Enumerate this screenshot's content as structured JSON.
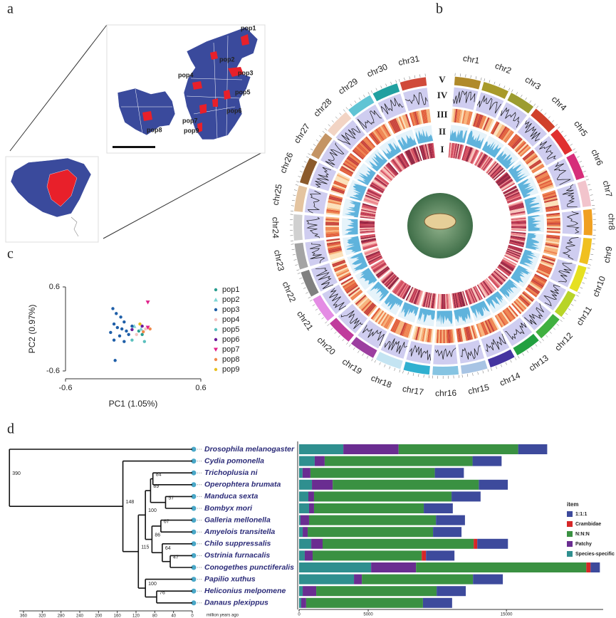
{
  "panel_labels": [
    "a",
    "b",
    "c",
    "d"
  ],
  "map": {
    "populations": [
      "pop1",
      "pop2",
      "pop3",
      "pop4",
      "pop5",
      "pop6",
      "pop7",
      "pop8",
      "pop9"
    ]
  },
  "circos": {
    "chromosomes": [
      "chr1",
      "chr2",
      "chr3",
      "chr4",
      "chr5",
      "chr6",
      "chr7",
      "chr8",
      "chr9",
      "chr10",
      "chr11",
      "chr12",
      "chr13",
      "chr14",
      "chr15",
      "chr16",
      "chr17",
      "chr18",
      "chr19",
      "chr20",
      "chr21",
      "chr22",
      "chr23",
      "chr24",
      "chr25",
      "chr26",
      "chr27",
      "chr28",
      "chr29",
      "chr30",
      "chr31"
    ],
    "colors": [
      "#b08a2a",
      "#a89a2a",
      "#9c9c30",
      "#d0402a",
      "#e03030",
      "#d62e7a",
      "#f2c4cc",
      "#f0a020",
      "#f0c020",
      "#e6e020",
      "#b8d428",
      "#40b040",
      "#22a040",
      "#4434a0",
      "#a8c4e4",
      "#86c4e2",
      "#30b0d0",
      "#c4e4f2",
      "#9c3ea0",
      "#c03c9c",
      "#e48ce4",
      "#808080",
      "#a4a4a4",
      "#d0d0d0",
      "#e4c4a0",
      "#8b5a2b",
      "#c49464",
      "#f2d4c4",
      "#60c4d4",
      "#20a0a0",
      "#d04a3a"
    ],
    "tracks": [
      "V",
      "IV",
      "III",
      "II",
      "I"
    ]
  },
  "chart_data": [
    {
      "type": "scatter",
      "xlabel": "PC1 (1.05%)",
      "ylabel": "PC2 (0.97%)",
      "xlim": [
        -0.6,
        0.6
      ],
      "ylim": [
        -0.6,
        0.6
      ],
      "xticks": [
        -0.6,
        0.6
      ],
      "yticks": [
        0.6,
        -0.6
      ],
      "series": [
        {
          "name": "pop1",
          "color": "#2a9d8f",
          "marker": "circle",
          "x": [
            0.05,
            0.08
          ],
          "values": [
            -0.03,
            -0.08
          ]
        },
        {
          "name": "pop2",
          "color": "#7fd6d6",
          "marker": "triangle",
          "x": [
            0.01,
            0.07
          ],
          "values": [
            0.04,
            0.0
          ]
        },
        {
          "name": "pop3",
          "color": "#1f5fa8",
          "marker": "circle",
          "x": [
            -0.18,
            -0.15,
            -0.11,
            -0.08,
            -0.17,
            -0.14,
            -0.1,
            -0.06,
            -0.2,
            -0.04,
            -0.12,
            -0.01,
            -0.17,
            -0.08,
            -0.16
          ],
          "values": [
            0.29,
            0.22,
            0.17,
            0.1,
            0.07,
            0.02,
            0.0,
            -0.03,
            -0.05,
            -0.08,
            -0.1,
            0.04,
            -0.16,
            -0.18,
            -0.45
          ]
        },
        {
          "name": "pop4",
          "color": "#f4c2c2",
          "marker": "circle",
          "x": [
            0.11,
            0.03
          ],
          "values": [
            0.0,
            -0.08
          ]
        },
        {
          "name": "pop5",
          "color": "#5bc0be",
          "marker": "circle",
          "x": [
            0.1,
            -0.01
          ],
          "values": [
            -0.18,
            -0.16
          ]
        },
        {
          "name": "pop6",
          "color": "#6a1b9a",
          "marker": "circle",
          "x": [
            -0.01,
            0.08
          ],
          "values": [
            -0.01,
            0.04
          ]
        },
        {
          "name": "pop7",
          "color": "#e0218a",
          "marker": "triangle-down",
          "x": [
            0.13,
            0.13
          ],
          "values": [
            0.38,
            0.02
          ]
        },
        {
          "name": "pop8",
          "color": "#f08a4b",
          "marker": "circle",
          "x": [
            0.15,
            0.09
          ],
          "values": [
            0.0,
            -0.04
          ]
        },
        {
          "name": "pop9",
          "color": "#e8c020",
          "marker": "circle",
          "x": [
            0.06
          ],
          "values": [
            0.07
          ]
        }
      ]
    },
    {
      "type": "bar",
      "orientation": "horizontal",
      "stacked": true,
      "legend_title": "item",
      "categories": [
        "Drosophila melanogaster",
        "Cydia pomonella",
        "Trichoplusia ni",
        "Operophtera brumata",
        "Manduca sexta",
        "Bombyx mori",
        "Galleria mellonella",
        "Amyelois transitella",
        "Chilo suppressalis",
        "Ostrinia furnacalis",
        "Conogethes punctiferalis",
        "Papilio xuthus",
        "Heliconius melpomene",
        "Danaus plexippus"
      ],
      "xlim": [
        0,
        22000
      ],
      "xticks": [
        0,
        5000,
        15000
      ],
      "series": [
        {
          "name": "1:1:1",
          "color": "#3d4a9c",
          "values": [
            2100,
            2100,
            2100,
            2100,
            2100,
            2100,
            2100,
            2060,
            2220,
            2060,
            670,
            2160,
            2110,
            2110
          ]
        },
        {
          "name": "Crambidae",
          "color": "#d62728",
          "values": [
            0,
            0,
            0,
            0,
            0,
            0,
            0,
            0,
            260,
            310,
            310,
            0,
            0,
            0
          ]
        },
        {
          "name": "N:N:N",
          "color": "#3a9142",
          "values": [
            8650,
            10700,
            9000,
            10570,
            9950,
            7940,
            9180,
            9070,
            10930,
            7890,
            12320,
            8040,
            8710,
            8450
          ]
        },
        {
          "name": "Patchy",
          "color": "#6a2d91",
          "values": [
            4000,
            720,
            570,
            1500,
            410,
            360,
            620,
            360,
            820,
            570,
            3250,
            570,
            980,
            360
          ]
        },
        {
          "name": "Species-specific",
          "color": "#2f8f8f",
          "values": [
            3200,
            1130,
            250,
            930,
            670,
            720,
            100,
            260,
            880,
            410,
            5210,
            3970,
            260,
            150
          ]
        }
      ]
    }
  ],
  "tree": {
    "node_ages": [
      390,
      148,
      84,
      89,
      57,
      100,
      67,
      115,
      86,
      64,
      47,
      100,
      76
    ],
    "axis_label": "million years ago",
    "ticks": [
      360,
      320,
      280,
      240,
      200,
      160,
      120,
      80,
      40,
      0
    ]
  }
}
